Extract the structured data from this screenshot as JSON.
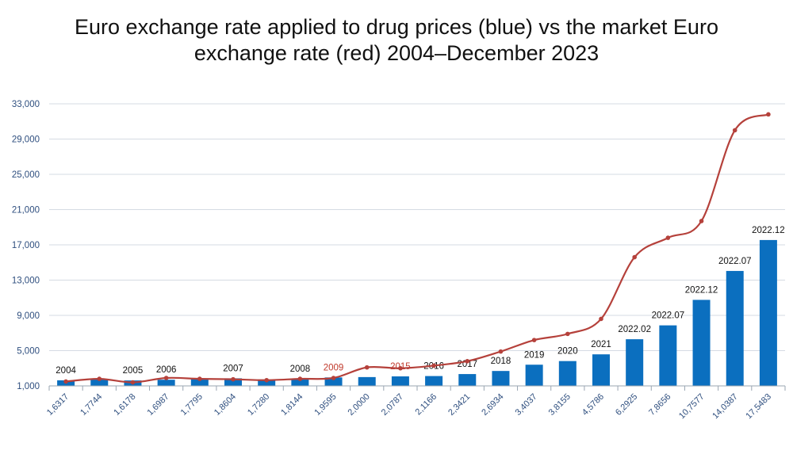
{
  "chart_data": {
    "type": "bar",
    "title_line1": "Euro exchange rate applied to drug prices (blue) vs the market Euro",
    "title_line2": "exchange rate (red) 2004–December 2023",
    "ylim": [
      1000,
      33000
    ],
    "yticks": [
      "1,000",
      "5,000",
      "9,000",
      "13,000",
      "17,000",
      "21,000",
      "25,000",
      "29,000",
      "33,000"
    ],
    "ytick_values": [
      1000,
      5000,
      9000,
      13000,
      17000,
      21000,
      25000,
      29000,
      33000
    ],
    "categories": [
      "1,6317",
      "1,7744",
      "1,6178",
      "1,6987",
      "1,7795",
      "1,8604",
      "1,7280",
      "1,8144",
      "1,9595",
      "2,0000",
      "2,0787",
      "2,1166",
      "2,3421",
      "2,6934",
      "3,4037",
      "3,8155",
      "4,5786",
      "6,2925",
      "7,8656",
      "10,7577",
      "14,0387",
      "17,5483"
    ],
    "bar_labels": [
      "2004",
      "",
      "2005",
      "2006",
      "",
      "2007",
      "",
      "2008",
      "2009",
      "",
      "2015",
      "2016",
      "2017",
      "2018",
      "2019",
      "2020",
      "2021",
      "2022.02",
      "2022.07",
      "2022.12",
      "2022.07",
      "2022.12"
    ],
    "bar_label_colors": [
      "#111111",
      "#111111",
      "#111111",
      "#111111",
      "#111111",
      "#111111",
      "#111111",
      "#111111",
      "#c0392b",
      "#111111",
      "#c0392b",
      "#111111",
      "#111111",
      "#111111",
      "#111111",
      "#111111",
      "#111111",
      "#111111",
      "#111111",
      "#111111",
      "#111111",
      "#111111"
    ],
    "series": [
      {
        "values": [
          1632,
          1774,
          1618,
          1699,
          1780,
          1860,
          1728,
          1814,
          1960,
          2000,
          2079,
          2117,
          2342,
          2693,
          3404,
          3816,
          4579,
          6293,
          7866,
          10758,
          14039,
          17548
        ],
        "color": "#0b6fbf"
      },
      {
        "values": [
          1500,
          1800,
          1400,
          1900,
          1800,
          1750,
          1650,
          1800,
          1900,
          3100,
          3000,
          3300,
          3800,
          4900,
          6200,
          6900,
          8600,
          15600,
          17800,
          19700,
          30000,
          31800
        ],
        "color": "#b5413b"
      }
    ]
  }
}
